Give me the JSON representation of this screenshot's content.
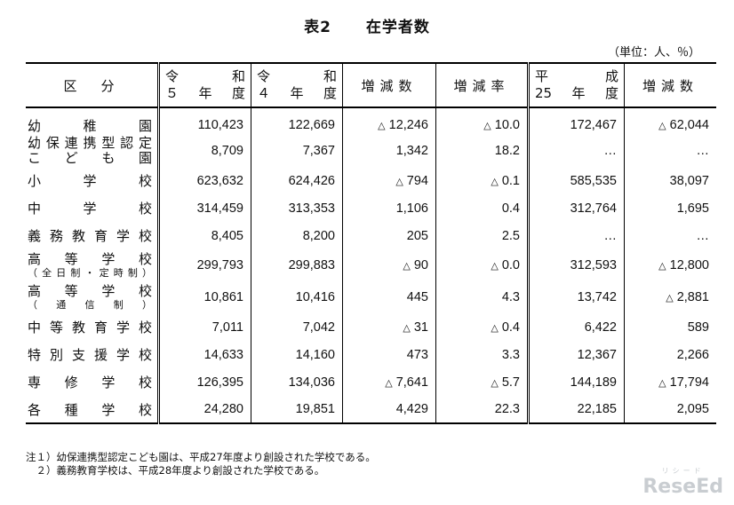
{
  "title": {
    "label": "表2",
    "text": "在学者数"
  },
  "unit": "（単位：人、％）",
  "headers": {
    "category": "区　分",
    "r5": {
      "l1a": "令",
      "l1b": "和",
      "l2a": "５",
      "l2b": "年",
      "l2c": "度"
    },
    "r4": {
      "l1a": "令",
      "l1b": "和",
      "l2a": "４",
      "l2b": "年",
      "l2c": "度"
    },
    "change": "増減数",
    "rate": "増減率",
    "h25": {
      "l1a": "平",
      "l1b": "成",
      "l2a": "25",
      "l2b": "年",
      "l2c": "度"
    },
    "change2": "増減数"
  },
  "rows": [
    {
      "name": "幼稚園",
      "sub": "",
      "r5": "110,423",
      "r4": "122,669",
      "chg": "12,246",
      "chg_neg": true,
      "rate": "10.0",
      "rate_neg": true,
      "h25": "172,467",
      "chg2": "62,044",
      "chg2_neg": true
    },
    {
      "name": "幼保連携型認定",
      "sub": "こども園",
      "r5": "8,709",
      "r4": "7,367",
      "chg": "1,342",
      "chg_neg": false,
      "rate": "18.2",
      "rate_neg": false,
      "h25": "…",
      "chg2": "…",
      "chg2_neg": false
    },
    {
      "name": "小学校",
      "sub": "",
      "r5": "623,632",
      "r4": "624,426",
      "chg": "794",
      "chg_neg": true,
      "rate": "0.1",
      "rate_neg": true,
      "h25": "585,535",
      "chg2": "38,097",
      "chg2_neg": false
    },
    {
      "name": "中学校",
      "sub": "",
      "r5": "314,459",
      "r4": "313,353",
      "chg": "1,106",
      "chg_neg": false,
      "rate": "0.4",
      "rate_neg": false,
      "h25": "312,764",
      "chg2": "1,695",
      "chg2_neg": false
    },
    {
      "name": "義務教育学校",
      "sub": "",
      "r5": "8,405",
      "r4": "8,200",
      "chg": "205",
      "chg_neg": false,
      "rate": "2.5",
      "rate_neg": false,
      "h25": "…",
      "chg2": "…",
      "chg2_neg": false
    },
    {
      "name": "高等学校",
      "sub": "（全日制・定時制）",
      "r5": "299,793",
      "r4": "299,883",
      "chg": "90",
      "chg_neg": true,
      "rate": "0.0",
      "rate_neg": true,
      "h25": "312,593",
      "chg2": "12,800",
      "chg2_neg": true
    },
    {
      "name": "高等学校",
      "sub": "（通信制）",
      "r5": "10,861",
      "r4": "10,416",
      "chg": "445",
      "chg_neg": false,
      "rate": "4.3",
      "rate_neg": false,
      "h25": "13,742",
      "chg2": "2,881",
      "chg2_neg": true
    },
    {
      "name": "中等教育学校",
      "sub": "",
      "r5": "7,011",
      "r4": "7,042",
      "chg": "31",
      "chg_neg": true,
      "rate": "0.4",
      "rate_neg": true,
      "h25": "6,422",
      "chg2": "589",
      "chg2_neg": false
    },
    {
      "name": "特別支援学校",
      "sub": "",
      "r5": "14,633",
      "r4": "14,160",
      "chg": "473",
      "chg_neg": false,
      "rate": "3.3",
      "rate_neg": false,
      "h25": "12,367",
      "chg2": "2,266",
      "chg2_neg": false
    },
    {
      "name": "専修学校",
      "sub": "",
      "r5": "126,395",
      "r4": "134,036",
      "chg": "7,641",
      "chg_neg": true,
      "rate": "5.7",
      "rate_neg": true,
      "h25": "144,189",
      "chg2": "17,794",
      "chg2_neg": true
    },
    {
      "name": "各種学校",
      "sub": "",
      "r5": "24,280",
      "r4": "19,851",
      "chg": "4,429",
      "chg_neg": false,
      "rate": "22.3",
      "rate_neg": false,
      "h25": "22,185",
      "chg2": "2,095",
      "chg2_neg": false
    }
  ],
  "negative_mark": "△",
  "notes": [
    "注１）幼保連携型認定こども園は、平成27年度より創設された学校である。",
    "　２）義務教育学校は、平成28年度より創設された学校である。"
  ],
  "logo": {
    "small": "リシード",
    "text": "ReseEd"
  }
}
